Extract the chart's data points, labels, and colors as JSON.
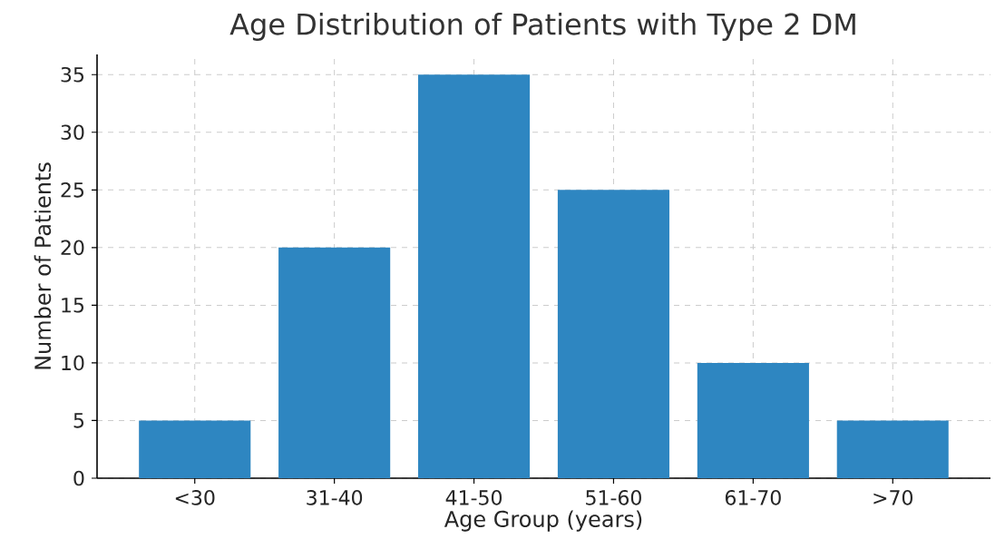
{
  "chart_data": {
    "type": "bar",
    "title": "Age Distribution of Patients with Type 2 DM",
    "xlabel": "Age Group (years)",
    "ylabel": "Number of Patients",
    "categories": [
      "<30",
      "31-40",
      "41-50",
      "51-60",
      "61-70",
      ">70"
    ],
    "values": [
      5,
      20,
      35,
      25,
      10,
      5
    ],
    "color": "#2e86c1",
    "ylim": [
      0,
      36.75
    ],
    "yticks": [
      0,
      5,
      10,
      15,
      20,
      25,
      30,
      35
    ],
    "grid": true
  }
}
